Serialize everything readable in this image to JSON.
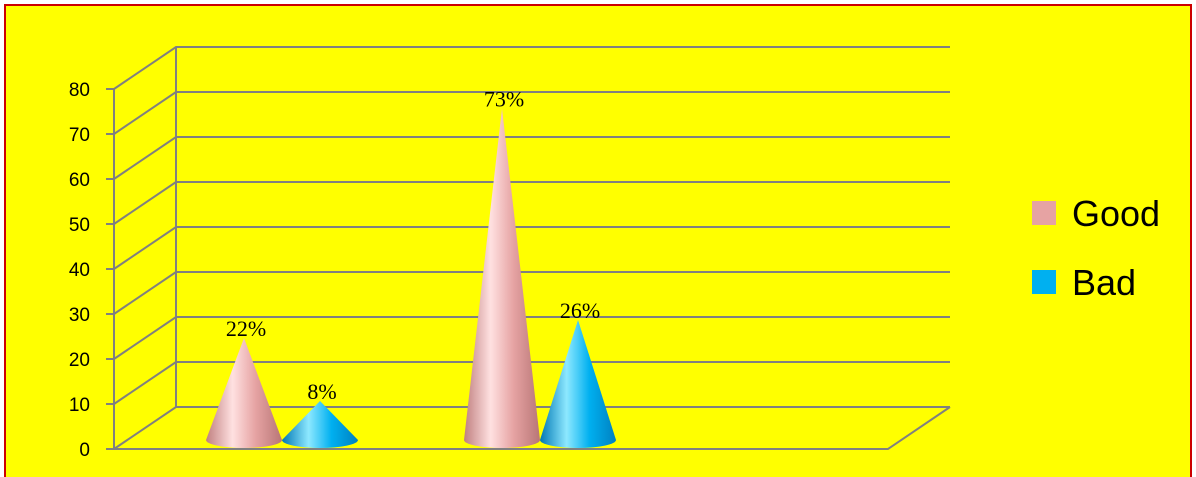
{
  "chart_data": {
    "type": "bar",
    "style": "3d-cone",
    "categories": [
      "",
      ""
    ],
    "series": [
      {
        "name": "Good",
        "values": [
          22,
          73
        ],
        "labels": [
          "22%",
          "73%"
        ],
        "color": "#e6a3a3"
      },
      {
        "name": "Bad",
        "values": [
          8,
          26
        ],
        "labels": [
          "8%",
          "26%"
        ],
        "color": "#00b0f0"
      }
    ],
    "title": "",
    "xlabel": "",
    "ylabel": "",
    "ylim": [
      0,
      80
    ],
    "yticks": [
      "0",
      "10",
      "20",
      "30",
      "40",
      "50",
      "60",
      "70",
      "80"
    ],
    "grid": true,
    "legend": "right"
  },
  "colors": {
    "background": "#ffff00",
    "border": "#cc0000",
    "grid": "#808080"
  }
}
